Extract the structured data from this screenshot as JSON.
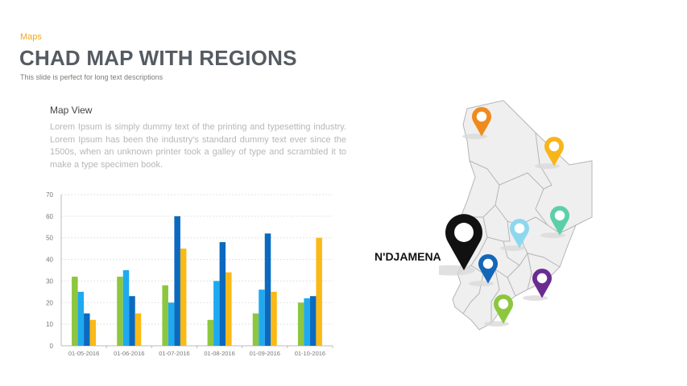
{
  "header": {
    "kicker": "Maps",
    "title": "CHAD MAP WITH REGIONS",
    "subtitle": "This slide is perfect for long text descriptions"
  },
  "text_block": {
    "heading": "Map View",
    "body": "Lorem Ipsum is simply dummy text of the printing and typesetting industry. Lorem Ipsum has been the industry's standard dummy text ever since the 1500s, when an unknown printer took a galley of type and scrambled it to make a type specimen book."
  },
  "map": {
    "capital_label": "N'DJAMENA",
    "pins": [
      {
        "name": "pin-orange",
        "color": "#f08a1d"
      },
      {
        "name": "pin-yellow",
        "color": "#f8b51b"
      },
      {
        "name": "pin-teal",
        "color": "#5dcfa7"
      },
      {
        "name": "pin-light-blue",
        "color": "#8dd8ef"
      },
      {
        "name": "pin-blue",
        "color": "#1466b8"
      },
      {
        "name": "pin-purple",
        "color": "#6b2c91"
      },
      {
        "name": "pin-green",
        "color": "#8dc63f"
      },
      {
        "name": "pin-capital",
        "color": "#111111"
      }
    ]
  },
  "chart_data": {
    "type": "bar",
    "categories": [
      "01-05-2016",
      "01-06-2016",
      "01-07-2016",
      "01-08-2016",
      "01-09-2016",
      "01-10-2016"
    ],
    "series": [
      {
        "color": "#8dc63f",
        "values": [
          32,
          32,
          28,
          12,
          15,
          20
        ]
      },
      {
        "color": "#1eaaf1",
        "values": [
          25,
          35,
          20,
          30,
          26,
          22
        ]
      },
      {
        "color": "#0b6abf",
        "values": [
          15,
          23,
          60,
          48,
          52,
          23
        ]
      },
      {
        "color": "#fbb915",
        "values": [
          12,
          15,
          45,
          34,
          25,
          50
        ]
      }
    ],
    "ylim": [
      0,
      70
    ],
    "yticks": [
      0,
      10,
      20,
      30,
      40,
      50,
      60,
      70
    ],
    "grid": true
  }
}
